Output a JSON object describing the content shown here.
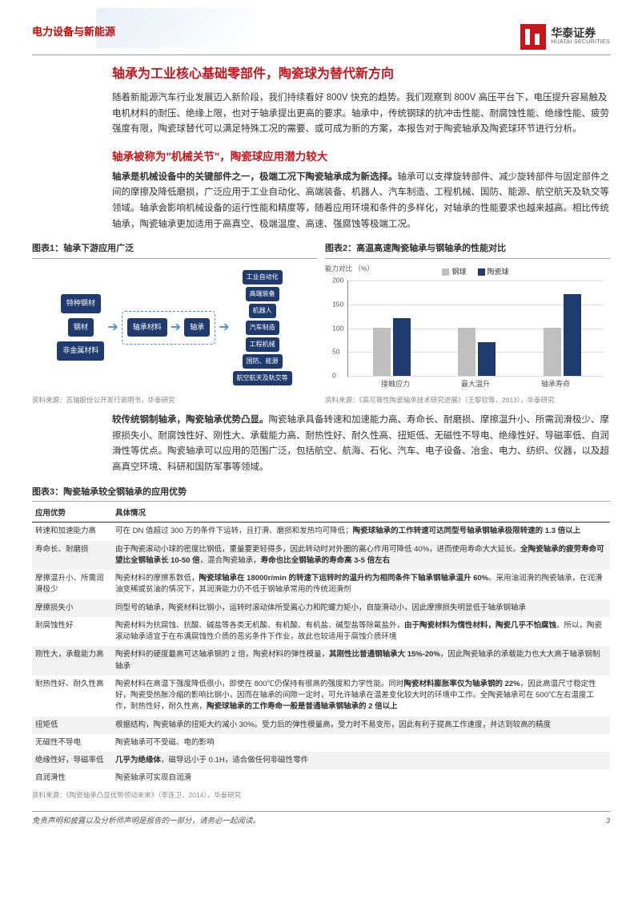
{
  "header": {
    "category": "电力设备与新能源",
    "brand": "华泰证券",
    "brand_en": "HUATAI SECURITIES"
  },
  "title_main": "轴承为工业核心基础零部件，陶瓷球为替代新方向",
  "intro": "随着新能源汽车行业发展迈入新阶段，我们持续看好 800V 快充的趋势。我们观察到 800V 高压平台下，电压提升容易触及电机材料的耐压、绝缘上限，也对于轴承提出更高的要求。轴承中，传统钢球的抗冲击性能、耐腐蚀性能、绝缘性能、疲劳强度有限，陶瓷球替代可以满足特殊工况的需要、或可成为新的方案，本报告对于陶瓷轴承及陶瓷球环节进行分析。",
  "section_title": "轴承被称为\"机械关节\"，陶瓷球应用潜力较大",
  "para1_bold": "轴承是机械设备中的关键部件之一，极端工况下陶瓷轴承成为新选择。",
  "para1": "轴承可以支撑旋转部件、减少旋转部件与固定部件之间的摩擦及降低磨损，广泛应用于工业自动化、高端装备、机器人、汽车制造、工程机械、国防、能源、航空航天及轨交等领域。轴承会影响机械设备的运行性能和精度等，随着应用环境和条件的多样化，对轴承的性能要求也越来越高。相比传统轴承，陶瓷轴承更加适用于高真空、极端温度、高速、强腐蚀等极端工况。",
  "chart1": {
    "title": "图表1：轴承下游应用广泛",
    "inputs": [
      "特种钢材",
      "钢材",
      "非金属材料"
    ],
    "mid1": "轴承材料",
    "mid2": "轴承",
    "outputs": [
      "工业自动化",
      "高端装备",
      "机器人",
      "汽车制造",
      "工程机械",
      "国防、能源",
      "航空航天及轨交等"
    ],
    "source": "资料来源：苏轴股份公开发行说明书，华泰研究",
    "colors": {
      "node_bg": "#1e3a6e",
      "node_fg": "#ffffff",
      "arrow": "#4a90d9",
      "dash": "#4a90d9"
    }
  },
  "chart2": {
    "title": "图表2：高温高速陶瓷轴承与钢轴承的性能对比",
    "type": "bar",
    "y_label": "能力对比\n（%）",
    "categories": [
      "接触应力",
      "最大温升",
      "轴承寿命"
    ],
    "series": [
      {
        "name": "钢球",
        "color": "#bfbfbf",
        "values": [
          100,
          100,
          100
        ]
      },
      {
        "name": "陶瓷球",
        "color": "#1e3a6e",
        "values": [
          120,
          70,
          170
        ]
      }
    ],
    "ylim": [
      0,
      200
    ],
    "ytick_step": 50,
    "grid_color": "#dddddd",
    "source": "资料来源：《高可靠性陶瓷轴承技术研究进展》（王黎钦等，2013），华泰研究"
  },
  "para2_bold": "较传统钢制轴承，陶瓷轴承优势凸显。",
  "para2": "陶瓷轴承具备转速和加速能力高、寿命长、耐磨损、摩擦温升小、所需润滑极少、摩擦损失小、耐腐蚀性好、刚性大、承载能力高、耐热性好、耐久性高、扭矩低、无磁性不导电、绝缘性好、导磁率低、自润滑性等优点。陶瓷轴承可以应用的范围广泛，包括航空、航海、石化、汽车、电子设备、冶金、电力、纺织、仪器，以及超高真空环境、科研和国防军事等领域。",
  "table3": {
    "title": "图表3：陶瓷轴承较全钢轴承的应用优势",
    "columns": [
      "应用优势",
      "具体情况"
    ],
    "rows": [
      [
        "转速和加速能力高",
        "可在 DN 值超过 300 万的条件下运转，且打滑、磨损和发热均可降低；陶瓷球轴承的工作转速可达同型号轴承钢轴承极限转速的 1.3 倍以上"
      ],
      [
        "寿命长、耐磨损",
        "由于陶瓷滚动小球的密度比钢低，重量要更轻得多，因此转动时对外圈的离心作用可降低 40%，进而使用寿命大大延长。全陶瓷轴承的疲劳寿命可望比全钢轴承长 10-50 倍，混合陶瓷轴承，寿命也比全钢轴承的寿命高 3-5 倍左右"
      ],
      [
        "摩擦温升小、所需润滑极少",
        "陶瓷材料的摩擦系数低，陶瓷球轴承在 18000r/min 的转速下运转时的温升约为相同条件下轴承钢轴承温升 60%。采用油润滑的陶瓷轴承，在润滑油变稀或贫油的情况下，其润滑能力仍不低于钢轴承常用的传统润滑剂"
      ],
      [
        "摩擦损失小",
        "同型号的轴承，陶瓷材料比钢小，运转时滚动体所受离心力和陀螺力矩小，自旋滑动小，因此摩擦损失明显低于轴承钢轴承"
      ],
      [
        "耐腐蚀性好",
        "陶瓷材料为抗腐蚀、抗酸、碱盐等各类无机酸、有机酸、有机盐、碱型盐等除氟盐外，由于陶瓷材料为惰性材料，陶瓷几乎不怕腐蚀。所以，陶瓷滚动轴承适宜于在布满腐蚀性介质的恶劣条件下作业，故此也较适用于腐蚀介质环境"
      ],
      [
        "刚性大，承载能力高",
        "陶瓷材料的硬度最高可达轴承钢的 2 倍，陶瓷材料的弹性模量，其刚性比普通钢轴承大 15%-20%，因此陶瓷轴承的承载能力也大大高于轴承钢制轴承"
      ],
      [
        "耐热性好、耐久性高",
        "陶瓷材料在高温下强度降低很小，即使在 800℃仍保持有很高的强度和力学性能。同时陶瓷材料膨胀率仅为轴承钢的 22%，因此高温尺寸稳定性好，陶瓷受热胀冷缩的影响比钢小，因而在轴承的间隙一定时，可允许轴承在温差变化较大时的环境中工作。全陶瓷轴承可在 500℃左右温度工作，耐热性好，耐久性高，陶瓷球轴承的工作寿命一般是普通轴承钢轴承的 2 倍以上"
      ],
      [
        "扭矩低",
        "根据结构，陶瓷轴承的扭矩大约减小 30%。受力后的弹性模量高，受力时不易变形，因此有利于提高工作速度，并达到较高的精度"
      ],
      [
        "无磁性不导电",
        "陶瓷轴承可不受磁、电的影响"
      ],
      [
        "绝缘性好，导磁率低",
        "几乎为绝缘体，磁导远小于 0.1H，适合做任何非磁性零件"
      ],
      [
        "自润滑性",
        "陶瓷轴承可实现自润滑"
      ]
    ],
    "source": "资料来源：《陶瓷轴承凸显优势领动未来》（李连卫，2014），华泰研究"
  },
  "footer": {
    "disclaimer": "免责声明和披露以及分析师声明是报告的一部分，请务必一起阅读。",
    "page": "3"
  }
}
